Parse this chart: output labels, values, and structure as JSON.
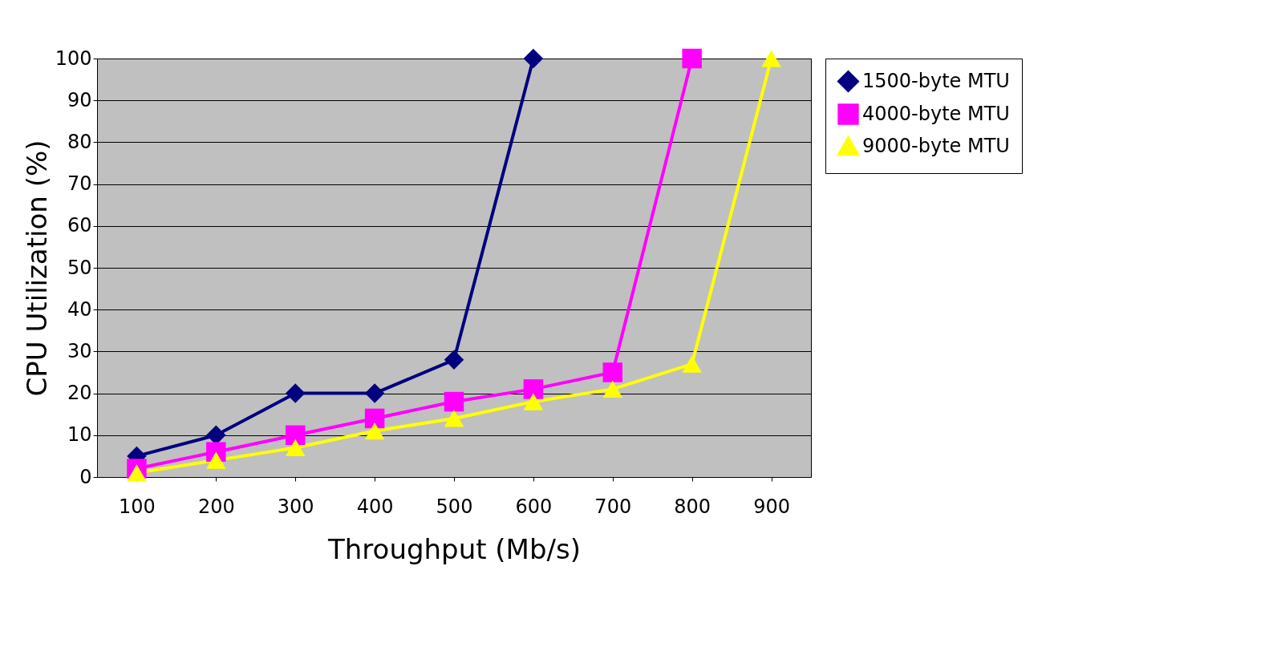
{
  "chart_data": {
    "type": "line",
    "xlabel": "Throughput (Mb/s)",
    "ylabel": "CPU Utilization (%)",
    "categories": [
      "100",
      "200",
      "300",
      "400",
      "500",
      "600",
      "700",
      "800",
      "900"
    ],
    "series": [
      {
        "name": "1500-byte MTU",
        "color": "#000080",
        "marker": "diamond",
        "values": [
          5,
          10,
          20,
          20,
          28,
          100,
          null,
          null,
          null
        ]
      },
      {
        "name": "4000-byte MTU",
        "color": "#ff00ff",
        "marker": "square",
        "values": [
          2,
          6,
          10,
          14,
          18,
          21,
          25,
          100,
          null
        ]
      },
      {
        "name": "9000-byte MTU",
        "color": "#ffff00",
        "marker": "triangle",
        "values": [
          1,
          4,
          7,
          11,
          14,
          18,
          21,
          27,
          100
        ]
      }
    ],
    "ylim": [
      0,
      100
    ],
    "yticks": [
      0,
      10,
      20,
      30,
      40,
      50,
      60,
      70,
      80,
      90,
      100
    ],
    "grid": "y",
    "legend": "right",
    "line_style": "solid"
  }
}
